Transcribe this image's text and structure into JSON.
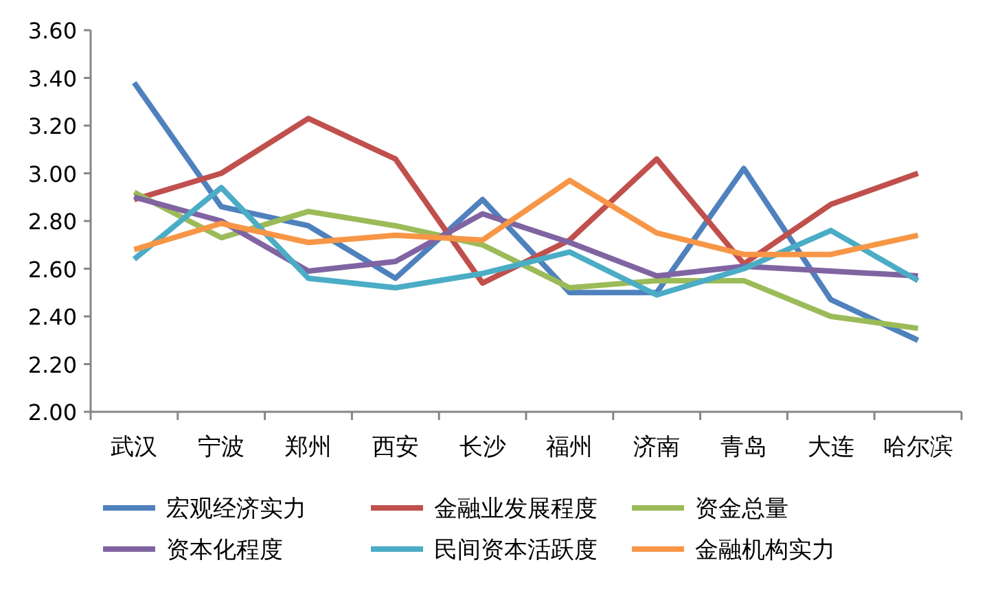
{
  "chart_data": {
    "type": "line",
    "categories": [
      "武汉",
      "宁波",
      "郑州",
      "西安",
      "长沙",
      "福州",
      "济南",
      "青岛",
      "大连",
      "哈尔滨"
    ],
    "series": [
      {
        "name": "宏观经济实力",
        "color": "#4f81bd",
        "values": [
          3.38,
          2.86,
          2.78,
          2.56,
          2.89,
          2.5,
          2.5,
          3.02,
          2.47,
          2.3
        ]
      },
      {
        "name": "金融业发展程度",
        "color": "#c0504d",
        "values": [
          2.89,
          3.0,
          3.23,
          3.06,
          2.54,
          2.72,
          3.06,
          2.62,
          2.87,
          3.0
        ]
      },
      {
        "name": "资金总量",
        "color": "#9bbb59",
        "values": [
          2.92,
          2.73,
          2.84,
          2.78,
          2.7,
          2.52,
          2.55,
          2.55,
          2.4,
          2.35
        ]
      },
      {
        "name": "资本化程度",
        "color": "#8064a2",
        "values": [
          2.9,
          2.8,
          2.59,
          2.63,
          2.83,
          2.71,
          2.57,
          2.61,
          2.59,
          2.57
        ]
      },
      {
        "name": "民间资本活跃度",
        "color": "#4bacc6",
        "values": [
          2.64,
          2.94,
          2.56,
          2.52,
          2.58,
          2.67,
          2.49,
          2.6,
          2.76,
          2.55
        ]
      },
      {
        "name": "金融机构实力",
        "color": "#f79646",
        "values": [
          2.68,
          2.79,
          2.71,
          2.74,
          2.72,
          2.97,
          2.75,
          2.66,
          2.66,
          2.74
        ]
      }
    ],
    "ylim": [
      2.0,
      3.6
    ],
    "yticks": [
      {
        "value": 2.0,
        "label": "2.00"
      },
      {
        "value": 2.2,
        "label": "2.20"
      },
      {
        "value": 2.4,
        "label": "2.40"
      },
      {
        "value": 2.6,
        "label": "2.60"
      },
      {
        "value": 2.8,
        "label": "2.80"
      },
      {
        "value": 3.0,
        "label": "3.00"
      },
      {
        "value": 3.2,
        "label": "3.20"
      },
      {
        "value": 3.4,
        "label": "3.40"
      },
      {
        "value": 3.6,
        "label": "3.60"
      }
    ],
    "legend": "bottom"
  }
}
